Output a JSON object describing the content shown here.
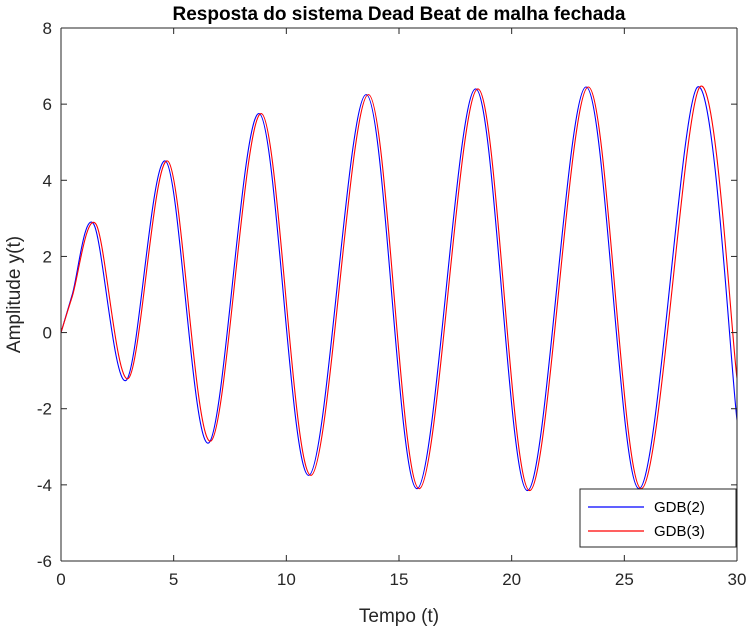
{
  "chart_data": {
    "type": "line",
    "title": "Resposta do sistema Dead Beat de malha fechada",
    "xlabel": "Tempo (t)",
    "ylabel": "Amplitude y(t)",
    "xlim": [
      0,
      30
    ],
    "ylim": [
      -6,
      8
    ],
    "xticks": [
      0,
      5,
      10,
      15,
      20,
      25,
      30
    ],
    "yticks": [
      -6,
      -4,
      -2,
      0,
      2,
      4,
      6,
      8
    ],
    "grid": false,
    "legend_position": "bottom-right",
    "series": [
      {
        "name": "GDB(2)",
        "color": "#0000ff",
        "x": [
          0,
          0.5,
          1.45,
          2.9,
          4.65,
          6.55,
          8.8,
          11.0,
          13.55,
          15.8,
          18.4,
          20.7,
          23.3,
          25.65,
          28.25,
          30
        ],
        "y": [
          0,
          1.0,
          2.85,
          -1.25,
          4.5,
          -2.9,
          5.75,
          -3.75,
          6.25,
          -4.1,
          6.4,
          -4.15,
          6.45,
          -4.1,
          6.45,
          -2.3
        ]
      },
      {
        "name": "GDB(3)",
        "color": "#ff0000",
        "x": [
          0,
          0.5,
          1.55,
          3.0,
          4.75,
          6.65,
          8.9,
          11.1,
          13.65,
          15.9,
          18.5,
          20.8,
          23.4,
          25.75,
          28.35,
          30
        ],
        "y": [
          0,
          0.95,
          2.85,
          -1.2,
          4.5,
          -2.85,
          5.75,
          -3.75,
          6.25,
          -4.1,
          6.4,
          -4.15,
          6.45,
          -4.1,
          6.45,
          -1.2
        ]
      }
    ]
  }
}
